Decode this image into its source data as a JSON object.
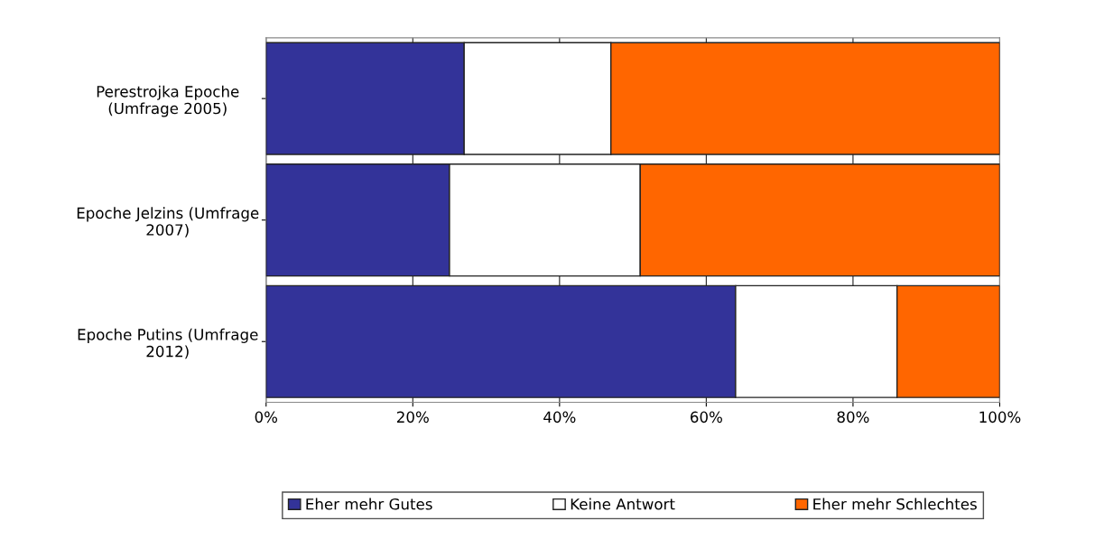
{
  "chart_data": {
    "type": "bar",
    "orientation": "horizontal",
    "stacked": true,
    "categories": [
      "Perestrojka Epoche\n(Umfrage 2005)",
      "Epoche Jelzins (Umfrage\n2007)",
      "Epoche Putins (Umfrage\n2012)"
    ],
    "series": [
      {
        "name": "Eher mehr Gutes",
        "color": "#333399",
        "values": [
          27,
          25,
          64
        ]
      },
      {
        "name": "Keine Antwort",
        "color": "#ffffff",
        "values": [
          20,
          26,
          22
        ]
      },
      {
        "name": "Eher mehr Schlechtes",
        "color": "#ff6600",
        "values": [
          53,
          49,
          14
        ]
      }
    ],
    "xlim": [
      0,
      100
    ],
    "xticks": [
      {
        "value": 0,
        "label": "0%"
      },
      {
        "value": 20,
        "label": "20%"
      },
      {
        "value": 40,
        "label": "40%"
      },
      {
        "value": 60,
        "label": "60%"
      },
      {
        "value": 80,
        "label": "80%"
      },
      {
        "value": 100,
        "label": "100%"
      }
    ],
    "grid": "x",
    "legend": "bottom"
  }
}
